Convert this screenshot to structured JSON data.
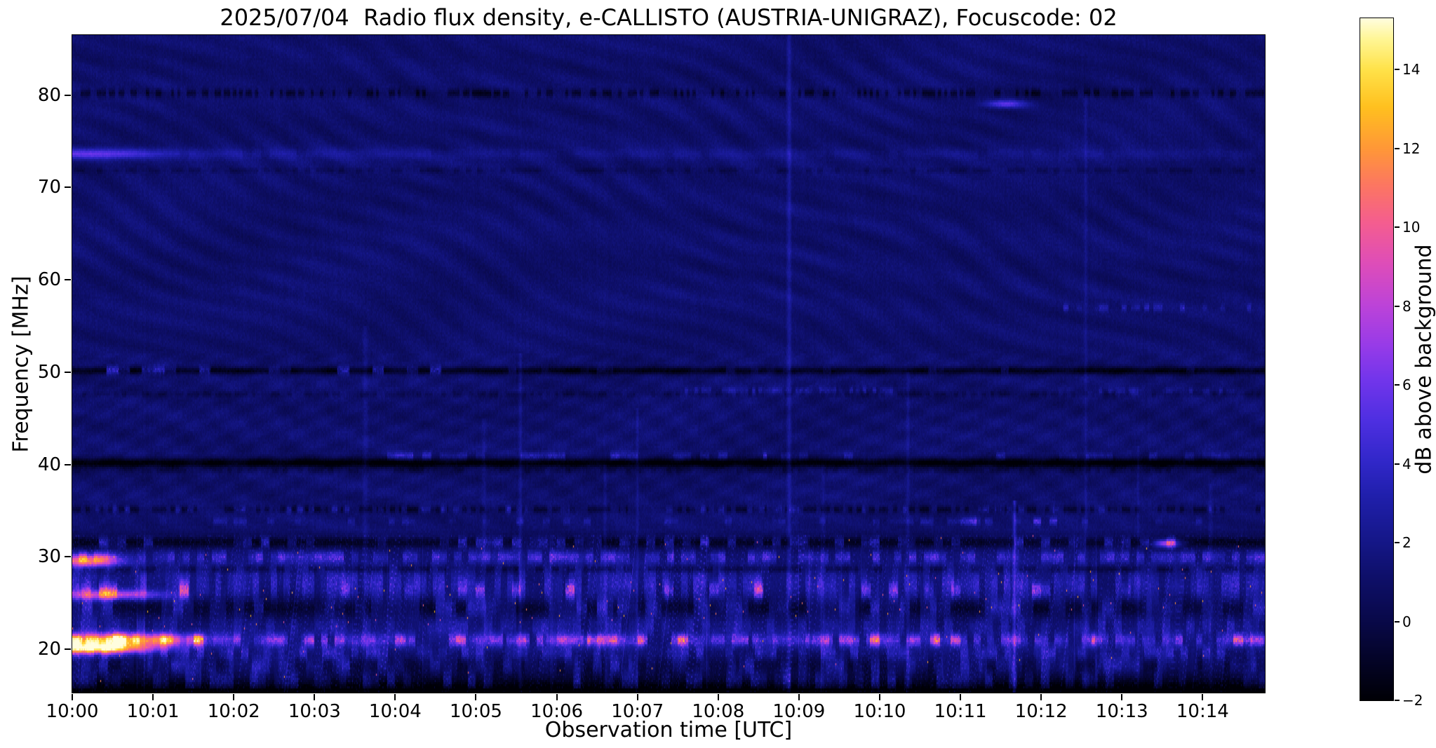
{
  "chart_data": {
    "type": "heatmap",
    "title": "2025/07/04  Radio flux density, e-CALLISTO (AUSTRIA-UNIGRAZ), Focuscode: 02",
    "xlabel": "Observation time [UTC]",
    "ylabel": "Frequency [MHz]",
    "colorbar_label": "dB above background",
    "x_ticks": [
      "10:00",
      "10:01",
      "10:02",
      "10:03",
      "10:04",
      "10:05",
      "10:06",
      "10:07",
      "10:08",
      "10:09",
      "10:10",
      "10:11",
      "10:12",
      "10:13",
      "10:14"
    ],
    "x_minutes_span": 14.77,
    "y_ticks": [
      20,
      30,
      40,
      50,
      60,
      70,
      80
    ],
    "freq_range_mhz": [
      15.3,
      86.5
    ],
    "value_range_db": [
      -2,
      15.3
    ],
    "colorbar_ticks": [
      -2,
      0,
      2,
      4,
      6,
      8,
      10,
      12,
      14
    ],
    "background_level_db": 1.0,
    "legend_position": "right-colorbar",
    "grid": false,
    "colormap_stops": [
      [
        0.0,
        0,
        0,
        6
      ],
      [
        0.06,
        4,
        4,
        40
      ],
      [
        0.12,
        9,
        9,
        75
      ],
      [
        0.18,
        14,
        15,
        105
      ],
      [
        0.235,
        21,
        23,
        137
      ],
      [
        0.3,
        32,
        31,
        172
      ],
      [
        0.35,
        49,
        39,
        201
      ],
      [
        0.41,
        78,
        47,
        225
      ],
      [
        0.47,
        114,
        53,
        235
      ],
      [
        0.52,
        151,
        59,
        232
      ],
      [
        0.58,
        189,
        67,
        216
      ],
      [
        0.64,
        222,
        77,
        185
      ],
      [
        0.7,
        244,
        93,
        144
      ],
      [
        0.755,
        252,
        118,
        98
      ],
      [
        0.81,
        255,
        152,
        55
      ],
      [
        0.87,
        255,
        192,
        31
      ],
      [
        0.925,
        255,
        226,
        73
      ],
      [
        0.97,
        255,
        246,
        150
      ],
      [
        1.0,
        255,
        253,
        222
      ]
    ],
    "features": {
      "noisy_rfi_region_mhz": [
        15.3,
        32.5
      ],
      "bands": [
        {
          "f": 80.2,
          "hw": 0.32,
          "type": "dark",
          "amp": 2.0,
          "dashrate": 26,
          "duty": 0.45
        },
        {
          "f": 79.0,
          "hw": 0.3,
          "type": "spot",
          "t": 11.55,
          "tw": 0.18,
          "amp": 4.5
        },
        {
          "f": 73.6,
          "hw": 0.45,
          "type": "bright",
          "amp": 1.7,
          "fade": 0.3,
          "dashrate": 9,
          "duty": 0.8
        },
        {
          "f": 73.6,
          "hw": 0.4,
          "type": "spot",
          "t": 0.3,
          "tw": 0.55,
          "amp": 3.2
        },
        {
          "f": 71.8,
          "hw": 0.22,
          "type": "dark",
          "amp": 0.9,
          "dashrate": 14,
          "duty": 0.5
        },
        {
          "f": 57.0,
          "hw": 0.28,
          "type": "bursts",
          "amp": 2.6,
          "thr": 0.5,
          "rate": 18,
          "t0": 12.1,
          "t1": 14.6,
          "seed": 57
        },
        {
          "f": 50.15,
          "hw": 0.3,
          "type": "dark",
          "amp": 2.6
        },
        {
          "f": 50.2,
          "hw": 0.3,
          "type": "bursts",
          "amp": 6.0,
          "thr": 0.6,
          "rate": 7,
          "t0": 0,
          "t1": 4.7,
          "seed": 50
        },
        {
          "f": 50.2,
          "hw": 0.26,
          "type": "bursts",
          "amp": 2.2,
          "thr": 0.82,
          "rate": 10,
          "t0": 4.7,
          "t1": 14.8,
          "seed": 51
        },
        {
          "f": 48.0,
          "hw": 0.28,
          "type": "bursts",
          "amp": 2.3,
          "thr": 0.42,
          "rate": 24,
          "t0": 7.5,
          "t1": 10.3,
          "seed": 48
        },
        {
          "f": 47.9,
          "hw": 0.28,
          "type": "bursts",
          "amp": 2.0,
          "thr": 0.48,
          "rate": 24,
          "t0": 12.5,
          "t1": 14.4,
          "seed": 49
        },
        {
          "f": 47.6,
          "hw": 0.22,
          "type": "dark",
          "amp": 0.9,
          "dashrate": 20,
          "duty": 0.5
        },
        {
          "f": 40.15,
          "hw": 0.38,
          "type": "dark",
          "amp": 3.2
        },
        {
          "f": 40.9,
          "hw": 0.28,
          "type": "bursts",
          "amp": 4.2,
          "thr": 0.52,
          "rate": 9,
          "t0": 3.9,
          "t1": 8.6,
          "seed": 41
        },
        {
          "f": 40.9,
          "hw": 0.28,
          "type": "bursts",
          "amp": 2.6,
          "thr": 0.78,
          "rate": 9,
          "t0": 8.6,
          "t1": 14.8,
          "seed": 42
        },
        {
          "f": 39.3,
          "hw": 0.22,
          "type": "dark",
          "amp": 0.9,
          "dashrate": 16,
          "duty": 0.5
        },
        {
          "f": 35.1,
          "hw": 0.28,
          "type": "dark",
          "amp": 1.7,
          "dashrate": 18,
          "duty": 0.55
        },
        {
          "f": 35.1,
          "hw": 0.26,
          "type": "bursts",
          "amp": 2.8,
          "thr": 0.82,
          "rate": 14,
          "seed": 35
        },
        {
          "f": 33.8,
          "hw": 0.28,
          "type": "bursts",
          "amp": 4.5,
          "thr": 0.55,
          "rate": 10,
          "t0": 10.7,
          "t1": 12.2,
          "seed": 34
        },
        {
          "f": 33.8,
          "hw": 0.26,
          "type": "bursts",
          "amp": 2.0,
          "thr": 0.8,
          "rate": 12,
          "seed": 340
        },
        {
          "f": 31.6,
          "hw": 0.5,
          "type": "dark",
          "amp": 2.4
        },
        {
          "f": 31.6,
          "hw": 0.38,
          "type": "bursts",
          "amp": 5.5,
          "thr": 0.64,
          "rate": 9,
          "seed": 31
        },
        {
          "f": 31.5,
          "hw": 0.3,
          "type": "spot",
          "t": 13.55,
          "tw": 0.12,
          "amp": 8.5
        },
        {
          "f": 30.0,
          "hw": 0.45,
          "type": "bursts",
          "amp": 4.6,
          "thr": 0.35,
          "rate": 11,
          "seed": 30
        },
        {
          "f": 29.6,
          "hw": 0.5,
          "type": "spot",
          "t": 0.18,
          "tw": 0.3,
          "amp": 9.5
        },
        {
          "f": 28.7,
          "hw": 0.28,
          "type": "dark",
          "amp": 1.6,
          "dashrate": 10,
          "duty": 0.6
        },
        {
          "f": 27.0,
          "hw": 1.2,
          "type": "bursts",
          "amp": 3.4,
          "thr": 0.3,
          "rate": 13,
          "seed": 27
        },
        {
          "f": 26.4,
          "hw": 0.6,
          "type": "bursts",
          "amp": 6.5,
          "thr": 0.82,
          "rate": 9,
          "seed": 26
        },
        {
          "f": 25.9,
          "hw": 0.4,
          "type": "spot",
          "t": 0.5,
          "tw": 0.45,
          "amp": 7.0
        },
        {
          "f": 24.5,
          "hw": 0.85,
          "type": "dark",
          "amp": 2.1,
          "dashrate": 5,
          "duty": 0.55
        },
        {
          "f": 24.5,
          "hw": 0.65,
          "type": "bursts",
          "amp": 3.2,
          "thr": 0.6,
          "rate": 8,
          "seed": 24
        },
        {
          "f": 22.5,
          "hw": 0.75,
          "type": "bursts",
          "amp": 2.6,
          "thr": 0.5,
          "rate": 10,
          "seed": 22
        },
        {
          "f": 21.0,
          "hw": 0.5,
          "type": "bursts",
          "amp": 5.5,
          "thr": 0.3,
          "rate": 12,
          "seed": 21
        },
        {
          "f": 21.0,
          "hw": 0.42,
          "type": "bursts",
          "amp": 7.0,
          "thr": 0.76,
          "rate": 8,
          "seed": 210
        },
        {
          "f": 21.05,
          "hw": 0.5,
          "type": "spot",
          "t": 0.55,
          "tw": 0.7,
          "amp": 11.0
        },
        {
          "f": 20.1,
          "hw": 0.42,
          "type": "spot",
          "t": 0.3,
          "tw": 0.5,
          "amp": 12.0
        },
        {
          "f": 19.6,
          "hw": 0.55,
          "type": "bursts",
          "amp": 3.2,
          "thr": 0.5,
          "rate": 11,
          "seed": 19
        },
        {
          "f": 18.4,
          "hw": 0.75,
          "type": "dark",
          "amp": 1.5,
          "dashrate": 6,
          "duty": 0.5
        },
        {
          "f": 18.2,
          "hw": 0.65,
          "type": "bursts",
          "amp": 3.0,
          "thr": 0.55,
          "rate": 9,
          "seed": 18
        },
        {
          "f": 16.4,
          "hw": 0.95,
          "type": "dark",
          "amp": 2.1
        },
        {
          "f": 16.6,
          "hw": 0.75,
          "type": "bursts",
          "amp": 3.4,
          "thr": 0.58,
          "rate": 10,
          "seed": 16
        },
        {
          "f": 15.6,
          "hw": 0.5,
          "type": "dark",
          "amp": 2.0
        }
      ],
      "vertical_streaks": [
        {
          "t": 3.63,
          "amp": 0.9,
          "w": 0.03,
          "ftop": 55
        },
        {
          "t": 5.1,
          "amp": 0.7,
          "w": 0.025,
          "ftop": 45
        },
        {
          "t": 5.55,
          "amp": 1.0,
          "w": 0.022,
          "ftop": 52
        },
        {
          "t": 6.6,
          "amp": 0.8,
          "w": 0.02,
          "ftop": 40
        },
        {
          "t": 7.0,
          "amp": 0.9,
          "w": 0.02,
          "ftop": 46
        },
        {
          "t": 8.88,
          "amp": 1.5,
          "w": 0.028,
          "ftop": 87
        },
        {
          "t": 9.3,
          "amp": 0.7,
          "w": 0.02,
          "ftop": 40
        },
        {
          "t": 10.35,
          "amp": 0.9,
          "w": 0.022,
          "ftop": 50
        },
        {
          "t": 11.67,
          "amp": 2.8,
          "w": 0.02,
          "ftop": 36
        },
        {
          "t": 12.55,
          "amp": 0.9,
          "w": 0.02,
          "ftop": 80
        },
        {
          "t": 13.2,
          "amp": 0.8,
          "w": 0.02,
          "ftop": 42
        },
        {
          "t": 14.1,
          "amp": 0.7,
          "w": 0.02,
          "ftop": 38
        }
      ]
    }
  }
}
